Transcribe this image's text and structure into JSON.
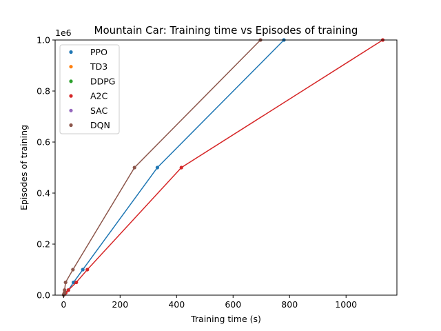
{
  "chart_data": {
    "type": "line",
    "title": "Mountain Car: Training time vs Episodes of training",
    "xlabel": "Training time (s)",
    "ylabel": "Episodes of training",
    "y_offset_label": "1e6",
    "xlim": [
      -30,
      1180
    ],
    "ylim": [
      0,
      1.0
    ],
    "x_ticks": [
      0,
      200,
      400,
      600,
      800,
      1000
    ],
    "x_tick_labels": [
      "0",
      "200",
      "400",
      "600",
      "800",
      "1000"
    ],
    "y_ticks": [
      0,
      0.2,
      0.4,
      0.6,
      0.8,
      1.0
    ],
    "y_tick_labels": [
      "0.0",
      "0.2",
      "0.4",
      "0.6",
      "0.8",
      "1.0"
    ],
    "legend_position": "top-left",
    "series": [
      {
        "name": "PPO",
        "color": "#1f77b4",
        "x": [
          0.5,
          3.5,
          7,
          17,
          35,
          68,
          332,
          780
        ],
        "y": [
          0.001,
          0.005,
          0.01,
          0.02,
          0.05,
          0.1,
          0.5,
          1.0
        ]
      },
      {
        "name": "TD3",
        "color": "#ff7f0e",
        "x": [],
        "y": []
      },
      {
        "name": "DDPG",
        "color": "#2ca02c",
        "x": [],
        "y": []
      },
      {
        "name": "A2C",
        "color": "#d62728",
        "x": [
          0.5,
          4,
          8,
          17,
          45,
          84,
          417,
          1130
        ],
        "y": [
          0.001,
          0.005,
          0.01,
          0.02,
          0.05,
          0.1,
          0.5,
          1.0
        ]
      },
      {
        "name": "SAC",
        "color": "#9467bd",
        "x": [],
        "y": []
      },
      {
        "name": "DQN",
        "color": "#8c564b",
        "x": [
          0.3,
          1.5,
          3,
          3.5,
          7,
          33,
          251,
          697
        ],
        "y": [
          0.001,
          0.005,
          0.01,
          0.02,
          0.05,
          0.1,
          0.5,
          1.0
        ]
      }
    ]
  }
}
